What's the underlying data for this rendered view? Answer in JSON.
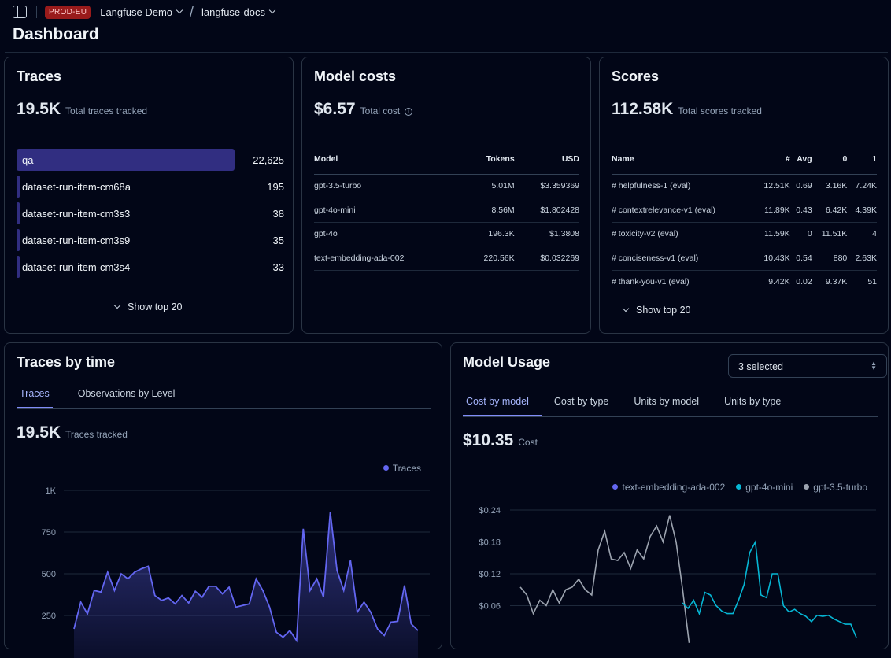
{
  "topbar": {
    "env_badge": "PROD-EU",
    "org": "Langfuse Demo",
    "project": "langfuse-docs"
  },
  "page": {
    "title": "Dashboard"
  },
  "traces_card": {
    "title": "Traces",
    "total": "19.5K",
    "total_label": "Total traces tracked",
    "rows": [
      {
        "name": "qa",
        "value": "22,625",
        "fraction": 1.0
      },
      {
        "name": "dataset-run-item-cm68a",
        "value": "195",
        "fraction": 0.0086
      },
      {
        "name": "dataset-run-item-cm3s3",
        "value": "38",
        "fraction": 0.0017
      },
      {
        "name": "dataset-run-item-cm3s9",
        "value": "35",
        "fraction": 0.0015
      },
      {
        "name": "dataset-run-item-cm3s4",
        "value": "33",
        "fraction": 0.0015
      }
    ],
    "show_more": "Show top 20"
  },
  "model_costs_card": {
    "title": "Model costs",
    "total": "$6.57",
    "total_label": "Total cost",
    "headers": [
      "Model",
      "Tokens",
      "USD"
    ],
    "rows": [
      [
        "gpt-3.5-turbo",
        "5.01M",
        "$3.359369"
      ],
      [
        "gpt-4o-mini",
        "8.56M",
        "$1.802428"
      ],
      [
        "gpt-4o",
        "196.3K",
        "$1.3808"
      ],
      [
        "text-embedding-ada-002",
        "220.56K",
        "$0.032269"
      ]
    ]
  },
  "scores_card": {
    "title": "Scores",
    "total": "112.58K",
    "total_label": "Total scores tracked",
    "headers": [
      "Name",
      "#",
      "Avg",
      "0",
      "1"
    ],
    "rows": [
      [
        "# helpfulness-1 (eval)",
        "12.51K",
        "0.69",
        "3.16K",
        "7.24K"
      ],
      [
        "# contextrelevance-v1 (eval)",
        "11.89K",
        "0.43",
        "6.42K",
        "4.39K"
      ],
      [
        "# toxicity-v2 (eval)",
        "11.59K",
        "0",
        "11.51K",
        "4"
      ],
      [
        "# conciseness-v1 (eval)",
        "10.43K",
        "0.54",
        "880",
        "2.63K"
      ],
      [
        "# thank-you-v1 (eval)",
        "9.42K",
        "0.02",
        "9.37K",
        "51"
      ]
    ],
    "show_more": "Show top 20"
  },
  "traces_time_card": {
    "title": "Traces by time",
    "tabs": [
      "Traces",
      "Observations by Level"
    ],
    "total": "19.5K",
    "total_label": "Traces tracked",
    "legend": "Traces"
  },
  "model_usage_card": {
    "title": "Model Usage",
    "select_value": "3 selected",
    "tabs": [
      "Cost by model",
      "Cost by type",
      "Units by model",
      "Units by type"
    ],
    "total": "$10.35",
    "total_label": "Cost",
    "legend": [
      "text-embedding-ada-002",
      "gpt-4o-mini",
      "gpt-3.5-turbo"
    ]
  },
  "colors": {
    "accent": "#6366f1",
    "teal": "#06b6d4",
    "gray": "#9ca3af",
    "bar": "#312e81"
  },
  "chart_data": [
    {
      "type": "area",
      "series": [
        {
          "name": "Traces",
          "values": [
            170,
            330,
            260,
            400,
            390,
            510,
            400,
            500,
            470,
            510,
            530,
            545,
            370,
            340,
            355,
            320,
            370,
            325,
            395,
            360,
            425,
            425,
            380,
            420,
            300,
            310,
            320,
            470,
            400,
            300,
            150,
            120,
            160,
            100,
            770,
            400,
            470,
            360,
            870,
            520,
            400,
            580,
            270,
            330,
            270,
            170,
            130,
            210,
            215,
            430,
            200,
            160
          ]
        }
      ],
      "yticks": [
        "1K",
        "750",
        "500",
        "250"
      ],
      "ylim": [
        0,
        1000
      ]
    },
    {
      "type": "line",
      "series": [
        {
          "name": "gpt-3.5-turbo",
          "values": [
            0.095,
            0.08,
            0.045,
            0.07,
            0.06,
            0.09,
            0.065,
            0.09,
            0.095,
            0.11,
            0.09,
            0.08,
            0.165,
            0.2,
            0.148,
            0.145,
            0.16,
            0.13,
            0.165,
            0.148,
            0.19,
            0.21,
            0.18,
            0.23,
            0.18,
            0.09,
            -0.01
          ]
        },
        {
          "name": "gpt-4o-mini",
          "values": [
            0.065,
            0.055,
            0.07,
            0.045,
            0.085,
            0.08,
            0.06,
            0.05,
            0.045,
            0.045,
            0.07,
            0.1,
            0.16,
            0.18,
            0.08,
            0.075,
            0.12,
            0.12,
            0.06,
            0.048,
            0.053,
            0.045,
            0.04,
            0.03,
            0.042,
            0.04,
            0.042,
            0.035,
            0.03,
            0.025,
            0.025,
            0.0
          ]
        }
      ],
      "yticks": [
        "$0.24",
        "$0.18",
        "$0.12",
        "$0.06"
      ],
      "ylim": [
        0,
        0.24
      ]
    }
  ]
}
